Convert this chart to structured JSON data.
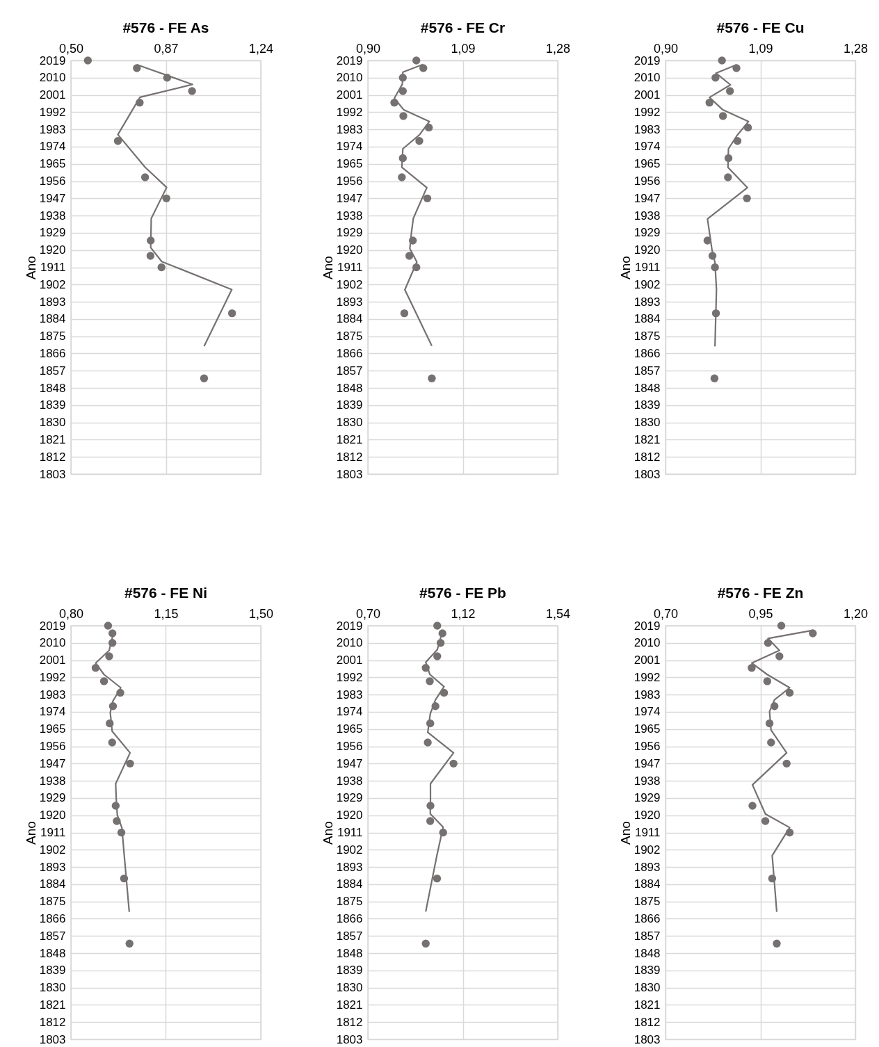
{
  "chart_data": [
    {
      "type": "scatter",
      "title": "#576 - FE As",
      "ylabel": "Ano",
      "xlim": [
        0.5,
        1.24
      ],
      "xticks": [
        {
          "value": 0.5,
          "label": "0,50"
        },
        {
          "value": 0.87,
          "label": "0,87"
        },
        {
          "value": 1.24,
          "label": "1,24"
        }
      ],
      "ylim": [
        1803,
        2019
      ],
      "yticks": [
        2019,
        2010,
        2001,
        1992,
        1983,
        1974,
        1965,
        1956,
        1947,
        1938,
        1929,
        1920,
        1911,
        1902,
        1893,
        1884,
        1875,
        1866,
        1857,
        1848,
        1839,
        1830,
        1821,
        1812,
        1803
      ],
      "grid": true,
      "series": [
        {
          "type": "scatter",
          "color": "#767171",
          "marker": "circle",
          "x": [
            0.566,
            0.757,
            0.875,
            0.972,
            0.768,
            0.683,
            0.789,
            0.872,
            0.811,
            0.81,
            0.853,
            1.128,
            1.019
          ],
          "values": [
            2019,
            2015,
            2010,
            2003,
            1997,
            1977,
            1958,
            1947,
            1925,
            1917,
            1911,
            1887,
            1853
          ]
        },
        {
          "type": "line",
          "color": "#767171",
          "x": [
            0.757,
            0.974,
            0.769,
            0.683,
            0.789,
            0.873,
            0.813,
            0.811,
            0.854,
            1.127,
            1.019
          ],
          "values": [
            2016.8,
            2006.5,
            1999.8,
            1980.3,
            1963.3,
            1952.7,
            1936.5,
            1921.3,
            1914.0,
            1899.4,
            1869.8
          ]
        }
      ]
    },
    {
      "type": "scatter",
      "title": "#576 - FE Cr",
      "ylabel": "Ano",
      "xlim": [
        0.9,
        1.28
      ],
      "xticks": [
        {
          "value": 0.9,
          "label": "0,90"
        },
        {
          "value": 1.09,
          "label": "1,09"
        },
        {
          "value": 1.28,
          "label": "1,28"
        }
      ],
      "ylim": [
        1803,
        2019
      ],
      "yticks": [
        2019,
        2010,
        2001,
        1992,
        1983,
        1974,
        1965,
        1956,
        1947,
        1938,
        1929,
        1920,
        1911,
        1902,
        1893,
        1884,
        1875,
        1866,
        1857,
        1848,
        1839,
        1830,
        1821,
        1812,
        1803
      ],
      "grid": true,
      "series": [
        {
          "type": "scatter",
          "color": "#767171",
          "marker": "circle",
          "x": [
            0.997,
            1.011,
            0.97,
            0.97,
            0.953,
            0.971,
            1.022,
            1.003,
            0.97,
            0.968,
            1.019,
            0.99,
            0.983,
            0.997,
            0.973,
            1.028
          ],
          "values": [
            2019,
            2015,
            2010,
            2003,
            1997,
            1990,
            1984,
            1977,
            1968,
            1958,
            1947,
            1925,
            1917,
            1911,
            1887,
            1853
          ]
        },
        {
          "type": "line",
          "color": "#767171",
          "x": [
            1.01,
            0.97,
            0.969,
            0.953,
            0.972,
            1.023,
            1.003,
            0.97,
            0.968,
            1.018,
            0.991,
            0.987,
            0.984,
            0.998,
            0.974,
            1.028
          ],
          "values": [
            2016.9,
            2012.9,
            2006.6,
            1999.3,
            1993.2,
            1987.1,
            1980.1,
            1972.9,
            1963.2,
            1952.6,
            1936.6,
            1928.7,
            1920.8,
            1913.8,
            1899.3,
            1870.0
          ]
        }
      ]
    },
    {
      "type": "scatter",
      "title": "#576 - FE Cu",
      "ylabel": "Ano",
      "xlim": [
        0.9,
        1.28
      ],
      "xticks": [
        {
          "value": 0.9,
          "label": "0,90"
        },
        {
          "value": 1.09,
          "label": "1,09"
        },
        {
          "value": 1.28,
          "label": "1,28"
        }
      ],
      "ylim": [
        1803,
        2019
      ],
      "yticks": [
        2019,
        2010,
        2001,
        1992,
        1983,
        1974,
        1965,
        1956,
        1947,
        1938,
        1929,
        1920,
        1911,
        1902,
        1893,
        1884,
        1875,
        1866,
        1857,
        1848,
        1839,
        1830,
        1821,
        1812,
        1803
      ],
      "grid": true,
      "series": [
        {
          "type": "scatter",
          "color": "#767171",
          "marker": "circle",
          "x": [
            1.013,
            1.042,
            1.0,
            1.029,
            0.988,
            1.015,
            1.065,
            1.044,
            1.026,
            1.025,
            1.063,
            0.984,
            0.994,
            0.999,
            1.001,
            0.998
          ],
          "values": [
            2019,
            2015,
            2010,
            2003,
            1997,
            1990,
            1984,
            1977,
            1968,
            1958,
            1947,
            1925,
            1917,
            1911,
            1887,
            1853
          ]
        },
        {
          "type": "line",
          "color": "#767171",
          "x": [
            1.042,
            1.001,
            1.03,
            0.988,
            1.015,
            1.066,
            1.043,
            1.026,
            1.025,
            1.064,
            0.984,
            0.993,
            0.999,
            1.002,
            0.999
          ],
          "values": [
            2016.7,
            2012.4,
            2006.3,
            1999.7,
            1993.2,
            1987.1,
            1979.8,
            1972.9,
            1963.2,
            1952.6,
            1936.3,
            1920.2,
            1913.5,
            1899.5,
            1869.7
          ]
        }
      ]
    },
    {
      "type": "scatter",
      "title": "#576 - FE Ni",
      "ylabel": "Ano",
      "xlim": [
        0.8,
        1.5
      ],
      "xticks": [
        {
          "value": 0.8,
          "label": "0,80"
        },
        {
          "value": 1.15,
          "label": "1,15"
        },
        {
          "value": 1.5,
          "label": "1,50"
        }
      ],
      "ylim": [
        1803,
        2019
      ],
      "yticks": [
        2019,
        2010,
        2001,
        1992,
        1983,
        1974,
        1965,
        1956,
        1947,
        1938,
        1929,
        1920,
        1911,
        1902,
        1893,
        1884,
        1875,
        1866,
        1857,
        1848,
        1839,
        1830,
        1821,
        1812,
        1803
      ],
      "grid": true,
      "series": [
        {
          "type": "scatter",
          "color": "#767171",
          "marker": "circle",
          "x": [
            0.937,
            0.953,
            0.953,
            0.941,
            0.891,
            0.922,
            0.982,
            0.955,
            0.943,
            0.952,
            1.018,
            0.965,
            0.969,
            0.986,
            0.996,
            1.016
          ],
          "values": [
            2019,
            2015,
            2010,
            2003,
            1997,
            1990,
            1984,
            1977,
            1968,
            1958,
            1947,
            1925,
            1917,
            1911,
            1887,
            1853
          ]
        },
        {
          "type": "line",
          "color": "#767171",
          "x": [
            0.953,
            0.953,
            0.941,
            0.891,
            0.922,
            0.984,
            0.955,
            0.945,
            0.952,
            1.018,
            0.965,
            0.967,
            0.971,
            0.988,
            0.996,
            1.015
          ],
          "values": [
            2016.6,
            2012.9,
            2006.1,
            1999.5,
            1993.5,
            1986.6,
            1979.7,
            1973.6,
            1963.9,
            1952.6,
            1936.5,
            1928.6,
            1920.1,
            1913.4,
            1900.0,
            1869.6
          ]
        }
      ]
    },
    {
      "type": "scatter",
      "title": "#576 - FE Pb",
      "ylabel": "Ano",
      "xlim": [
        0.7,
        1.54
      ],
      "xticks": [
        {
          "value": 0.7,
          "label": "0,70"
        },
        {
          "value": 1.12,
          "label": "1,12"
        },
        {
          "value": 1.54,
          "label": "1,54"
        }
      ],
      "ylim": [
        1803,
        2019
      ],
      "yticks": [
        2019,
        2010,
        2001,
        1992,
        1983,
        1974,
        1965,
        1956,
        1947,
        1938,
        1929,
        1920,
        1911,
        1902,
        1893,
        1884,
        1875,
        1866,
        1857,
        1848,
        1839,
        1830,
        1821,
        1812,
        1803
      ],
      "grid": true,
      "series": [
        {
          "type": "scatter",
          "color": "#767171",
          "marker": "circle",
          "x": [
            1.007,
            1.03,
            1.022,
            1.007,
            0.956,
            0.974,
            1.037,
            0.999,
            0.976,
            0.965,
            1.079,
            0.977,
            0.976,
            1.033,
            1.006,
            0.956
          ],
          "values": [
            2019,
            2015,
            2010,
            2003,
            1997,
            1990,
            1984,
            1977,
            1968,
            1958,
            1947,
            1925,
            1917,
            1911,
            1887,
            1853
          ]
        },
        {
          "type": "line",
          "color": "#767171",
          "x": [
            1.03,
            1.022,
            1.007,
            0.956,
            0.974,
            1.037,
            0.999,
            0.976,
            0.965,
            1.079,
            0.977,
            0.977,
            0.976,
            1.033,
            1.006,
            0.956
          ],
          "values": [
            2016.8,
            2012.7,
            2006.5,
            1999.9,
            1993.6,
            1987.2,
            1980.3,
            1972.9,
            1963.3,
            1952.6,
            1936.5,
            1928.6,
            1920.8,
            1913.8,
            1899.4,
            1869.7
          ]
        }
      ]
    },
    {
      "type": "scatter",
      "title": "#576 - FE Zn",
      "ylabel": "Ano",
      "xlim": [
        0.7,
        1.2
      ],
      "xticks": [
        {
          "value": 0.7,
          "label": "0,70"
        },
        {
          "value": 0.95,
          "label": "0,95"
        },
        {
          "value": 1.2,
          "label": "1,20"
        }
      ],
      "ylim": [
        1803,
        2019
      ],
      "yticks": [
        2019,
        2010,
        2001,
        1992,
        1983,
        1974,
        1965,
        1956,
        1947,
        1938,
        1929,
        1920,
        1911,
        1902,
        1893,
        1884,
        1875,
        1866,
        1857,
        1848,
        1839,
        1830,
        1821,
        1812,
        1803
      ],
      "grid": true,
      "series": [
        {
          "type": "scatter",
          "color": "#767171",
          "marker": "circle",
          "x": [
            1.005,
            1.088,
            0.97,
            1.0,
            0.927,
            0.968,
            1.027,
            0.987,
            0.974,
            0.978,
            1.019,
            0.929,
            0.963,
            1.027,
            0.981,
            0.993
          ],
          "values": [
            2019,
            2015,
            2010,
            2003,
            1997,
            1990,
            1984,
            1977,
            1968,
            1958,
            1947,
            1925,
            1917,
            1911,
            1887,
            1853
          ]
        },
        {
          "type": "line",
          "color": "#767171",
          "x": [
            1.088,
            0.97,
            1.0,
            0.927,
            0.968,
            1.027,
            0.987,
            0.974,
            0.978,
            1.019,
            0.929,
            0.963,
            1.027,
            0.981,
            0.993
          ],
          "values": [
            2016.6,
            2012.3,
            2006.1,
            1999.5,
            1993.5,
            1986.6,
            1980.3,
            1974.2,
            1964.5,
            1952.6,
            1935.9,
            1920.7,
            1913.6,
            1899.0,
            1869.6
          ]
        }
      ]
    }
  ]
}
